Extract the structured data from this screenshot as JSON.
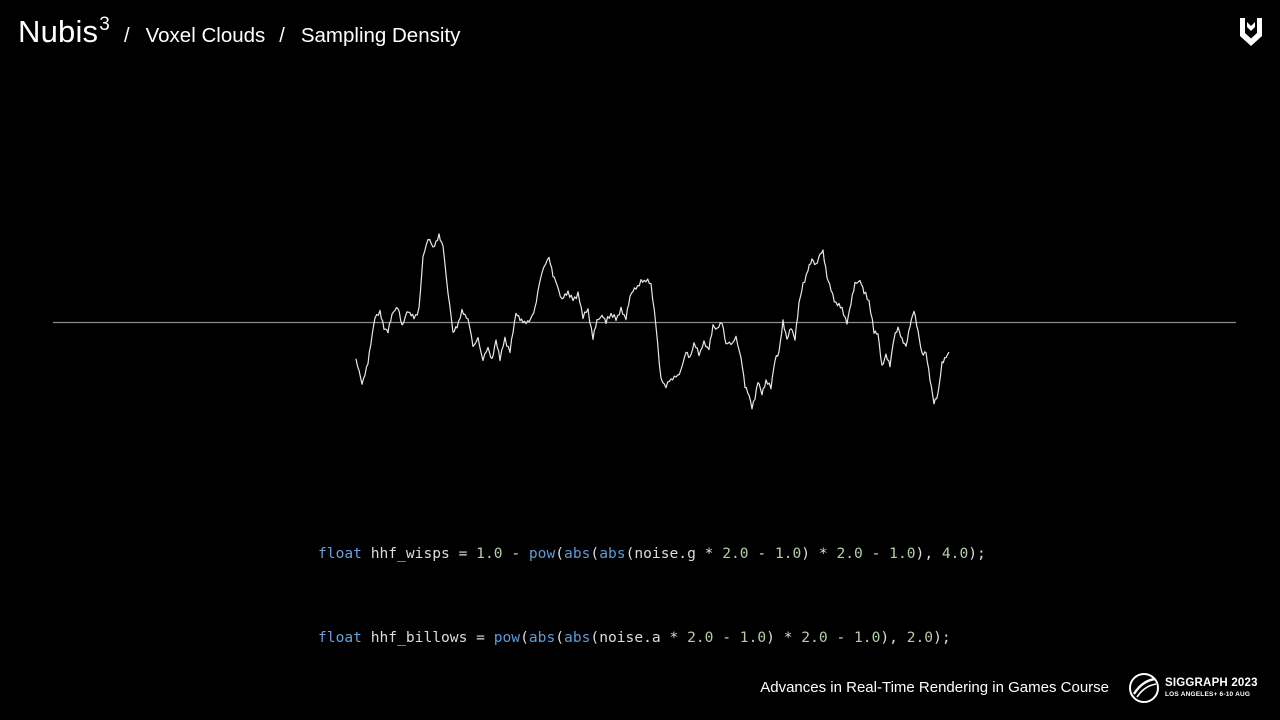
{
  "header": {
    "brand": "Nubis",
    "brand_superscript": "3",
    "separator": "/",
    "crumbs": [
      "Voxel Clouds",
      "Sampling Density"
    ]
  },
  "icons": {
    "top_right_logo": "chevron-shield-logo-icon",
    "siggraph_logo": "siggraph-globe-logo-icon"
  },
  "colors": {
    "background": "#000000",
    "axis_line": "#8a8a8a",
    "waveform": "#e8e8e8",
    "keyword": "#6a9fde",
    "function": "#5b9cd6",
    "number": "#b5cea8"
  },
  "code": {
    "lines": [
      [
        {
          "t": "float",
          "c": "kw"
        },
        {
          "t": " hhf_wisps = ",
          "c": ""
        },
        {
          "t": "1.0",
          "c": "num"
        },
        {
          "t": " - ",
          "c": ""
        },
        {
          "t": "pow",
          "c": "fn"
        },
        {
          "t": "(",
          "c": ""
        },
        {
          "t": "abs",
          "c": "fn"
        },
        {
          "t": "(",
          "c": ""
        },
        {
          "t": "abs",
          "c": "fn"
        },
        {
          "t": "(noise.g * ",
          "c": ""
        },
        {
          "t": "2.0",
          "c": "num"
        },
        {
          "t": " - ",
          "c": ""
        },
        {
          "t": "1.0",
          "c": "num"
        },
        {
          "t": ") * ",
          "c": ""
        },
        {
          "t": "2.0",
          "c": "num"
        },
        {
          "t": " - ",
          "c": ""
        },
        {
          "t": "1.0",
          "c": "num"
        },
        {
          "t": "), ",
          "c": ""
        },
        {
          "t": "4.0",
          "c": "num"
        },
        {
          "t": ");",
          "c": ""
        }
      ],
      [
        {
          "t": "float",
          "c": "kw"
        },
        {
          "t": " hhf_billows = ",
          "c": ""
        },
        {
          "t": "pow",
          "c": "fn"
        },
        {
          "t": "(",
          "c": ""
        },
        {
          "t": "abs",
          "c": "fn"
        },
        {
          "t": "(",
          "c": ""
        },
        {
          "t": "abs",
          "c": "fn"
        },
        {
          "t": "(noise.a * ",
          "c": ""
        },
        {
          "t": "2.0",
          "c": "num"
        },
        {
          "t": " - ",
          "c": ""
        },
        {
          "t": "1.0",
          "c": "num"
        },
        {
          "t": ") * ",
          "c": ""
        },
        {
          "t": "2.0",
          "c": "num"
        },
        {
          "t": " - ",
          "c": ""
        },
        {
          "t": "1.0",
          "c": "num"
        },
        {
          "t": "), ",
          "c": ""
        },
        {
          "t": "2.0",
          "c": "num"
        },
        {
          "t": ");",
          "c": ""
        }
      ]
    ]
  },
  "footer": {
    "course": "Advances in Real-Time Rendering in Games Course",
    "siggraph_title": "SIGGRAPH 2023",
    "siggraph_subtitle": "LOS ANGELES+ 6-10 AUG"
  }
}
